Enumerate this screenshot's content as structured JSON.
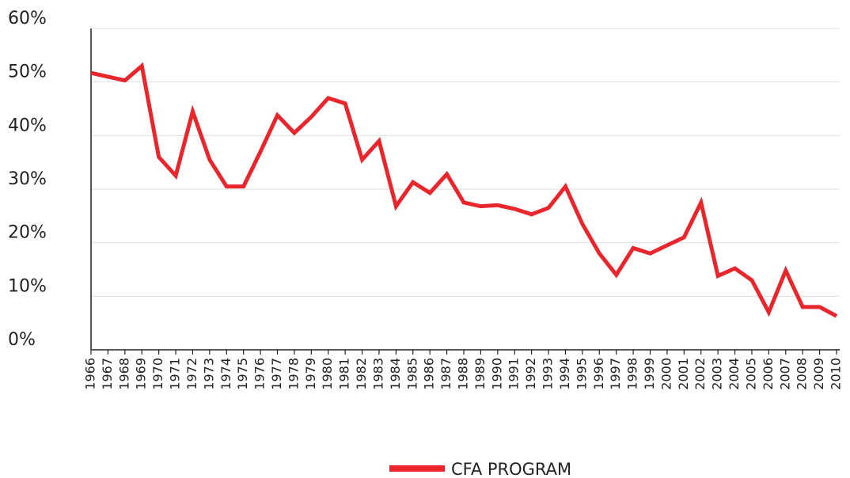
{
  "chart_data": {
    "type": "line",
    "categories": [
      "1966",
      "1967",
      "1968",
      "1969",
      "1970",
      "1971",
      "1972",
      "1973",
      "1974",
      "1975",
      "1976",
      "1977",
      "1978",
      "1979",
      "1980",
      "1981",
      "1982",
      "1983",
      "1984",
      "1985",
      "1986",
      "1987",
      "1988",
      "1989",
      "1990",
      "1991",
      "1992",
      "1993",
      "1994",
      "1995",
      "1996",
      "1997",
      "1998",
      "1999",
      "2000",
      "2001",
      "2002",
      "2003",
      "2004",
      "2005",
      "2006",
      "2007",
      "2008",
      "2009",
      "2010"
    ],
    "series": [
      {
        "name": "CFA PROGRAM",
        "color": "#e8262c",
        "values": [
          51.7,
          51.0,
          50.3,
          53.0,
          36.0,
          32.5,
          44.5,
          35.5,
          30.5,
          30.5,
          37.0,
          43.8,
          40.5,
          43.5,
          47.0,
          46.0,
          35.5,
          39.0,
          26.8,
          31.3,
          29.3,
          32.8,
          27.5,
          26.8,
          27.0,
          26.3,
          25.3,
          26.5,
          30.5,
          23.5,
          18.0,
          14.0,
          19.0,
          18.0,
          19.5,
          21.0,
          27.5,
          13.8,
          15.2,
          13.0,
          7.0,
          14.8,
          8.0,
          8.0,
          6.3
        ]
      }
    ],
    "ylim": [
      0,
      60
    ],
    "yticks": [
      {
        "value": 0,
        "label": "0%"
      },
      {
        "value": 10,
        "label": "10%"
      },
      {
        "value": 20,
        "label": "20%"
      },
      {
        "value": 30,
        "label": "30%"
      },
      {
        "value": 40,
        "label": "40%"
      },
      {
        "value": 50,
        "label": "50%"
      },
      {
        "value": 60,
        "label": "60%"
      }
    ],
    "grid": true,
    "legend": "bottom"
  }
}
